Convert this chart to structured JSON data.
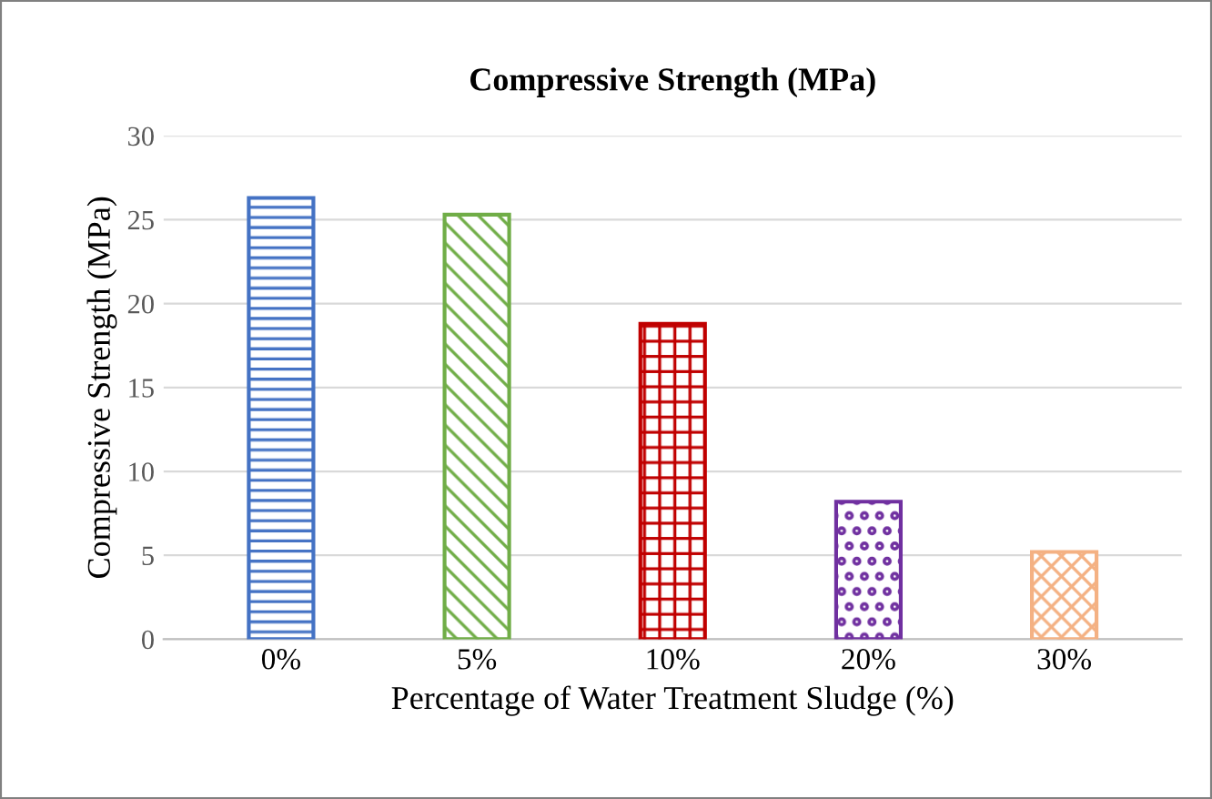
{
  "chart_data": {
    "type": "bar",
    "title": "Compressive Strength (MPa)",
    "xlabel": "Percentage of Water Treatment Sludge (%)",
    "ylabel": "Compressive Strength (MPa)",
    "categories": [
      "0%",
      "5%",
      "10%",
      "20%",
      "30%"
    ],
    "values": [
      26.3,
      25.3,
      18.8,
      8.2,
      5.2
    ],
    "colors": [
      "#4472c4",
      "#70ad47",
      "#c00000",
      "#7030a0",
      "#f4b183"
    ],
    "ylim": [
      0,
      30
    ],
    "yticks": [
      0,
      5,
      10,
      15,
      20,
      25,
      30
    ],
    "grid": "y",
    "legend": false
  }
}
